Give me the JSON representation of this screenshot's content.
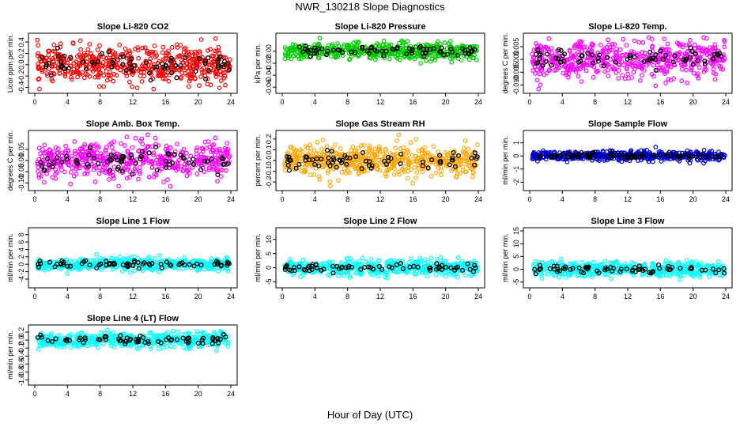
{
  "title": "NWR_130218  Slope Diagnostics",
  "xlabel": "Hour of Day (UTC)",
  "chart_data": [
    {
      "type": "scatter",
      "title": "Slope Li-820 CO2",
      "ylabel": "Licor ppm per min.",
      "color": "#ff0000",
      "xlim": [
        0,
        24
      ],
      "ylim": [
        -0.45,
        0.5
      ],
      "xticks": [
        0,
        4,
        8,
        12,
        16,
        20,
        24
      ],
      "yticks": [
        -0.4,
        -0.2,
        0.0,
        0.2,
        0.4
      ],
      "yticklabels": [
        "-0.4",
        "-0.2",
        "0.0",
        "0.2",
        "0.4"
      ],
      "spread": 0.16,
      "series": [
        {
          "name": "",
          "values": []
        }
      ]
    },
    {
      "type": "scatter",
      "title": "Slope Li-820 Pressure",
      "ylabel": "kPa per min.",
      "color": "#00cc00",
      "xlim": [
        0,
        24
      ],
      "ylim": [
        -0.065,
        0.025
      ],
      "xticks": [
        0,
        4,
        8,
        12,
        16,
        20,
        24
      ],
      "yticks": [
        -0.06,
        -0.04,
        -0.02,
        0.0
      ],
      "yticklabels": [
        "-0.06",
        "-0.04",
        "-0.02",
        "0.00"
      ],
      "spread": 0.007,
      "series": [
        {
          "name": "",
          "values": []
        }
      ]
    },
    {
      "type": "scatter",
      "title": "Slope Li-820 Temp.",
      "ylabel": "degrees C per min.",
      "color": "#ff00ff",
      "xlim": [
        0,
        24
      ],
      "ylim": [
        -0.012,
        0.009
      ],
      "xticks": [
        0,
        4,
        8,
        12,
        16,
        20,
        24
      ],
      "yticks": [
        -0.01,
        -0.005,
        0.0,
        0.005
      ],
      "yticklabels": [
        "-0.010",
        "-0.005",
        "0.000",
        "0.005"
      ],
      "spread": 0.0035,
      "series": [
        {
          "name": "",
          "values": []
        }
      ]
    },
    {
      "type": "scatter",
      "title": "Slope Amb. Box Temp.",
      "ylabel": "degrees C per min.",
      "color": "#ff00ff",
      "xlim": [
        0,
        24
      ],
      "ylim": [
        -0.12,
        0.12
      ],
      "xticks": [
        0,
        4,
        8,
        12,
        16,
        20,
        24
      ],
      "yticks": [
        -0.1,
        -0.05,
        0.0,
        0.05
      ],
      "yticklabels": [
        "-0.10",
        "-0.05",
        "0.00",
        "0.05"
      ],
      "spread": 0.04,
      "series": [
        {
          "name": "",
          "values": []
        }
      ]
    },
    {
      "type": "scatter",
      "title": "Slope Gas Stream RH",
      "ylabel": "percent per min.",
      "color": "#ffa500",
      "xlim": [
        0,
        24
      ],
      "ylim": [
        -0.25,
        0.25
      ],
      "xticks": [
        0,
        4,
        8,
        12,
        16,
        20,
        24
      ],
      "yticks": [
        -0.2,
        -0.1,
        0.0,
        0.1,
        0.2
      ],
      "yticklabels": [
        "-0.2",
        "-0.1",
        "0.0",
        "0.1",
        "0.2"
      ],
      "spread": 0.07,
      "series": [
        {
          "name": "",
          "values": []
        }
      ]
    },
    {
      "type": "scatter",
      "title": "Slope Sample Flow",
      "ylabel": "ml/min per min.",
      "color": "#0000cc",
      "xlim": [
        0,
        24
      ],
      "ylim": [
        -2.4,
        1.7
      ],
      "xticks": [
        0,
        4,
        8,
        12,
        16,
        20,
        24
      ],
      "yticks": [
        -2,
        -1,
        0,
        1
      ],
      "yticklabels": [
        "-2",
        "-1",
        "0",
        "1"
      ],
      "spread": 0.18,
      "series": [
        {
          "name": "",
          "values": []
        }
      ]
    },
    {
      "type": "scatter",
      "title": "Slope Line 1 Flow",
      "ylabel": "ml/min per min.",
      "color": "#00ffff",
      "xlim": [
        0,
        24
      ],
      "ylim": [
        -5.5,
        9
      ],
      "xticks": [
        0,
        4,
        8,
        12,
        16,
        20,
        24
      ],
      "yticks": [
        -4,
        -2,
        0,
        2,
        4,
        6,
        8
      ],
      "yticklabels": [
        "-4",
        "-2",
        "0",
        "2",
        "4",
        "6",
        "8"
      ],
      "spread": 0.8,
      "series": [
        {
          "name": "",
          "values": []
        }
      ]
    },
    {
      "type": "scatter",
      "title": "Slope Line 2 Flow",
      "ylabel": "ml/min per min.",
      "color": "#00ffff",
      "xlim": [
        0,
        24
      ],
      "ylim": [
        -6,
        13
      ],
      "xticks": [
        0,
        4,
        8,
        12,
        16,
        20,
        24
      ],
      "yticks": [
        -5,
        0,
        5,
        10
      ],
      "yticklabels": [
        "-5",
        "0",
        "5",
        "10"
      ],
      "spread": 1.3,
      "series": [
        {
          "name": "",
          "values": []
        }
      ]
    },
    {
      "type": "scatter",
      "title": "Slope Line 3 Flow",
      "ylabel": "ml/min per min.",
      "color": "#00ffff",
      "xlim": [
        0,
        24
      ],
      "ylim": [
        -6,
        15
      ],
      "xticks": [
        0,
        4,
        8,
        12,
        16,
        20,
        24
      ],
      "yticks": [
        -5,
        0,
        5,
        10,
        15
      ],
      "yticklabels": [
        "-5",
        "0",
        "5",
        "10",
        "15"
      ],
      "spread": 1.4,
      "series": [
        {
          "name": "",
          "values": []
        }
      ]
    },
    {
      "type": "scatter",
      "title": "Slope Line 4 (LT) Flow",
      "ylabel": "ml/min per min.",
      "color": "#00ffff",
      "xlim": [
        0,
        24
      ],
      "ylim": [
        -1.05,
        0.3
      ],
      "xticks": [
        0,
        4,
        8,
        12,
        16,
        20,
        24
      ],
      "yticks": [
        -1.0,
        -0.8,
        -0.6,
        -0.4,
        -0.2,
        0.0,
        0.2
      ],
      "yticklabels": [
        "-1.0",
        "-0.8",
        "-0.6",
        "-0.4",
        "-0.2",
        "0.0",
        "0.2"
      ],
      "spread": 0.09,
      "series": [
        {
          "name": "",
          "values": []
        }
      ]
    }
  ]
}
